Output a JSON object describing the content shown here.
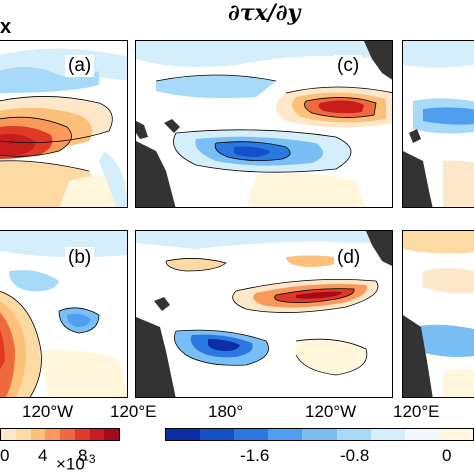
{
  "header": {
    "left_title_fragment": "x",
    "center_title": "∂τx/∂y"
  },
  "panels": [
    {
      "id": "a",
      "label": "(a)"
    },
    {
      "id": "b",
      "label": "(b)"
    },
    {
      "id": "c",
      "label": "(c)"
    },
    {
      "id": "d",
      "label": "(d)"
    }
  ],
  "x_axis": {
    "left_ticks": [
      "120°W"
    ],
    "middle_ticks": [
      "120°E",
      "180°",
      "120°W"
    ],
    "right_ticks": [
      "120°E"
    ]
  },
  "colorbar_left": {
    "ticks": [
      "0",
      "4",
      "8"
    ],
    "multiplier": "×10",
    "exponent": "-3",
    "colors": [
      "#fde7c9",
      "#fdd9a3",
      "#fdc07a",
      "#f99a5c",
      "#ef6a3e",
      "#de3a26",
      "#c81d1d",
      "#a8091a"
    ]
  },
  "colorbar_right": {
    "ticks": [
      "-1.6",
      "-0.8",
      "0"
    ],
    "colors": [
      "#0a2ea8",
      "#1450c8",
      "#2a78e0",
      "#4e9ff0",
      "#79bff6",
      "#a7daf8",
      "#d4eefb",
      "#f2f9fd",
      "#fff6dc"
    ]
  },
  "colors": {
    "land": "#333333",
    "strong_positive": "#c81d1d",
    "strong_negative": "#1a3fb8"
  }
}
